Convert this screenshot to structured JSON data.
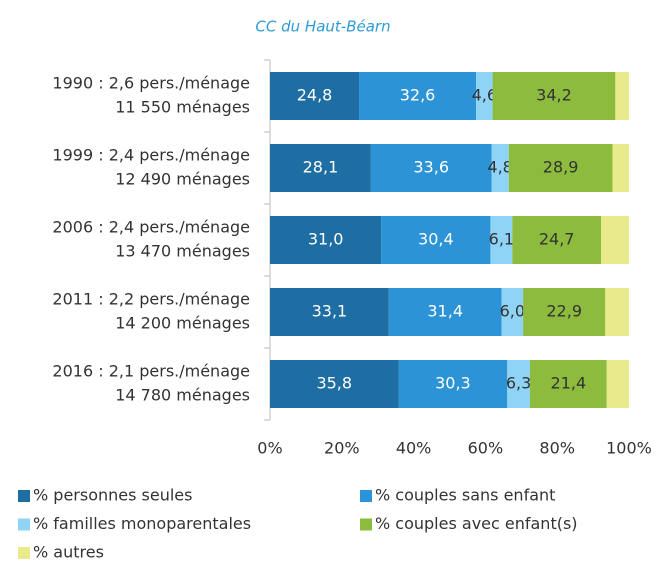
{
  "chart_data": {
    "type": "stacked_bar_horizontal",
    "title": "CC du Haut-Béarn",
    "categories": [
      [
        "1990 : 2,6 pers./ménage",
        "11 550 ménages"
      ],
      [
        "1999 : 2,4 pers./ménage",
        "12 490 ménages"
      ],
      [
        "2006 : 2,4 pers./ménage",
        "13 470 ménages"
      ],
      [
        "2011 : 2,2 pers./ménage",
        "14 200 ménages"
      ],
      [
        "2016 : 2,1 pers./ménage",
        "14 780 ménages"
      ]
    ],
    "series": [
      {
        "name": "% personnes seules",
        "color": "#1f6ea3",
        "text_color": "#ffffff",
        "values": [
          24.8,
          28.1,
          31.0,
          33.1,
          35.8
        ],
        "value_labels": [
          "24,8",
          "28,1",
          "31,0",
          "33,1",
          "35,8"
        ]
      },
      {
        "name": "% couples sans enfant",
        "color": "#2b93d6",
        "text_color": "#ffffff",
        "values": [
          32.6,
          33.6,
          30.4,
          31.4,
          30.3
        ],
        "value_labels": [
          "32,6",
          "33,6",
          "30,4",
          "31,4",
          "30,3"
        ]
      },
      {
        "name": "% familles monoparentales",
        "color": "#8fd4f6",
        "text_color": "#333333",
        "values": [
          4.6,
          4.8,
          6.1,
          6.0,
          6.3
        ],
        "value_labels": [
          "4,6",
          "4,8",
          "6,1",
          "6,0",
          "6,3"
        ]
      },
      {
        "name": "% couples avec enfant(s)",
        "color": "#8dbb3d",
        "text_color": "#333333",
        "values": [
          34.2,
          28.9,
          24.7,
          22.9,
          21.4
        ],
        "value_labels": [
          "34,2",
          "28,9",
          "24,7",
          "22,9",
          "21,4"
        ]
      },
      {
        "name": "% autres",
        "color": "#e9ea8c",
        "values": [
          3.8,
          4.6,
          7.8,
          6.6,
          6.2
        ]
      }
    ],
    "xlim": [
      0,
      100
    ],
    "xticks": [
      {
        "value": 0,
        "label": "0%"
      },
      {
        "value": 20,
        "label": "20%"
      },
      {
        "value": 40,
        "label": "40%"
      },
      {
        "value": 60,
        "label": "60%"
      },
      {
        "value": 80,
        "label": "80%"
      },
      {
        "value": 100,
        "label": "100%"
      }
    ],
    "legend": "bottom"
  }
}
